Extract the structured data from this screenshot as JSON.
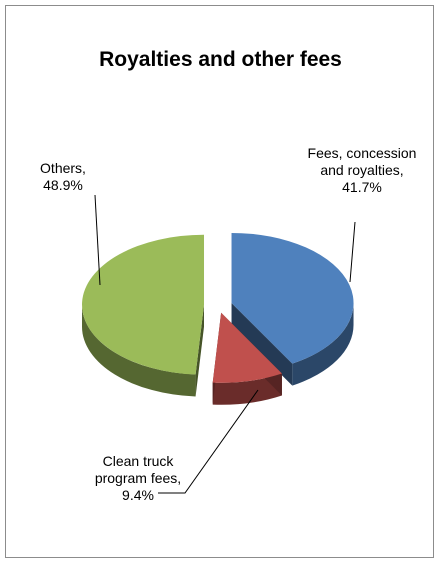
{
  "chart_data": {
    "type": "pie",
    "title": "Royalties and other fees",
    "three_d": true,
    "exploded": true,
    "slices": [
      {
        "label_lines": [
          "Fees, concession",
          "and royalties,",
          "41.7%"
        ],
        "category": "Fees, concession and royalties",
        "value": 41.7,
        "color": "#4f81bd"
      },
      {
        "label_lines": [
          "Clean truck",
          "program fees,",
          "9.4%"
        ],
        "category": "Clean truck program fees",
        "value": 9.4,
        "color": "#c0504d"
      },
      {
        "label_lines": [
          "Others,",
          "48.9%"
        ],
        "category": "Others",
        "value": 48.9,
        "color": "#9bbb59"
      }
    ]
  }
}
